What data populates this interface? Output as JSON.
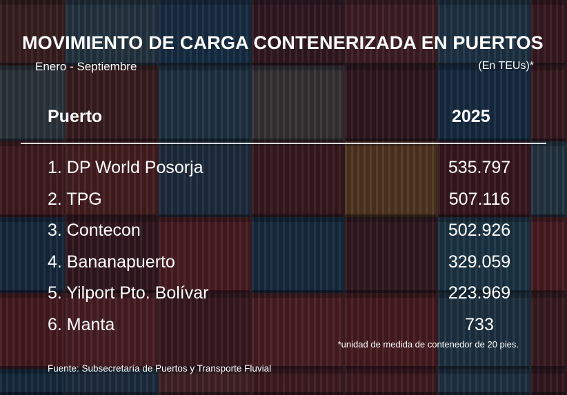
{
  "background_colors": [
    "#7a3c36",
    "#4d6f86",
    "#2f5f88",
    "#6e2f3a",
    "#8a3b3f",
    "#3c6c8c",
    "#7b2f38",
    "#5e6f7b",
    "#7d3a34",
    "#3e6b86",
    "#7a6c68",
    "#6b2c37",
    "#2d5b86",
    "#7d3538",
    "#8d3336",
    "#9a3a36",
    "#3f5e7e",
    "#7a2f34",
    "#b5733a",
    "#7c2d34",
    "#4c7086",
    "#2f567e",
    "#6d2b33",
    "#a2373a",
    "#2e5a80",
    "#6c2f38",
    "#3b6f8e",
    "#a43838",
    "#9b3236",
    "#a13b3e",
    "#7a3036",
    "#a23a3c",
    "#9c3337",
    "#3d6a85",
    "#7c3338",
    "#2b587e",
    "#3d5e83",
    "#934444",
    "#8a3435",
    "#8a3336",
    "#3f6a87",
    "#6f2d34"
  ],
  "chart_data": {
    "type": "table",
    "title": "MOVIMIENTO DE CARGA CONTENERIZADA EN PUERTOS",
    "subtitle": "Enero - Septiembre",
    "unit": "(En TEUs)*",
    "columns": [
      "Puerto",
      "2025"
    ],
    "rows": [
      {
        "port": "1. DP World Posorja",
        "value": "535.797"
      },
      {
        "port": "2. TPG",
        "value": "507.116"
      },
      {
        "port": "3. Contecon",
        "value": "502.926"
      },
      {
        "port": "4. Bananapuerto",
        "value": "329.059"
      },
      {
        "port": "5. Yilport Pto. Bolívar",
        "value": "223.969"
      },
      {
        "port": "6. Manta",
        "value": "733"
      }
    ],
    "note": "*unidad de medida de contenedor de 20 pies.",
    "source": "Fuente: Subsecretaría de Puertos y Transporte Fluvial"
  }
}
